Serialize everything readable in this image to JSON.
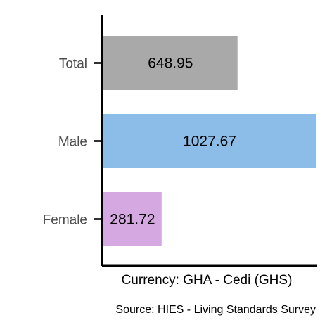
{
  "chart_data": {
    "type": "bar",
    "orientation": "horizontal",
    "categories": [
      "Total",
      "Male",
      "Female"
    ],
    "values": [
      648.95,
      1027.67,
      281.72
    ],
    "data_labels": [
      "648.95",
      "1027.67",
      "281.72"
    ],
    "colors": [
      "#a9a9a9",
      "#8bbde8",
      "#d5a8e1"
    ],
    "xlabel": "Currency: GHA - Cedi (GHS)",
    "ylabel": "",
    "title": "",
    "caption": "Source:  HIES - Living Standards Survey",
    "xlim": [
      0,
      1027.67
    ],
    "grid": false,
    "legend": "none"
  }
}
